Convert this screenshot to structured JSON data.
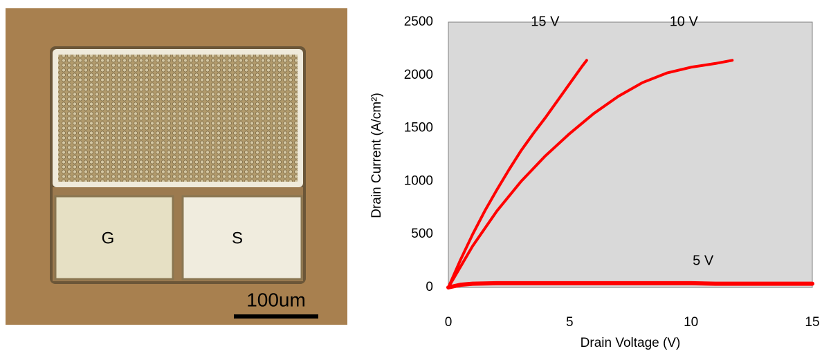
{
  "image": {
    "pads": [
      "G",
      "S"
    ],
    "scale_bar": "100um"
  },
  "chart_data": {
    "type": "line",
    "x_label": "Drain Voltage (V)",
    "y_label": "Drain Current (A/cm²)",
    "xlim": [
      0,
      15
    ],
    "xticks": [
      0,
      5,
      10,
      15
    ],
    "ylim": [
      0,
      2500
    ],
    "yticks": [
      0,
      500,
      1000,
      1500,
      2000,
      2500
    ],
    "background": "#d9d9d9",
    "series": [
      {
        "name": "15 V",
        "color": "#ff0000",
        "x": [
          0,
          0.5,
          1,
          1.5,
          2,
          2.5,
          3,
          3.5,
          4,
          4.5,
          5,
          5.5,
          5.7
        ],
        "values": [
          0,
          260,
          500,
          720,
          920,
          1110,
          1290,
          1450,
          1600,
          1760,
          1920,
          2080,
          2140
        ]
      },
      {
        "name": "10 V",
        "color": "#ff0000",
        "x": [
          0,
          1,
          2,
          3,
          4,
          5,
          6,
          7,
          8,
          9,
          10,
          11,
          11.7
        ],
        "values": [
          0,
          390,
          720,
          1000,
          1240,
          1450,
          1640,
          1800,
          1930,
          2020,
          2075,
          2110,
          2140
        ]
      },
      {
        "name": "5 V",
        "color": "#ff0000",
        "x": [
          0,
          0.5,
          1,
          2,
          5,
          10,
          11,
          15
        ],
        "values": [
          0,
          25,
          35,
          40,
          40,
          40,
          35,
          35
        ]
      }
    ]
  }
}
